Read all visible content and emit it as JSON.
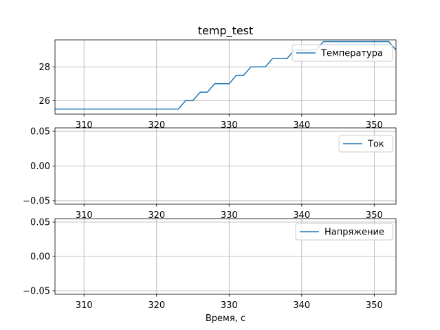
{
  "figure": {
    "title": "temp_test"
  },
  "colors": {
    "line": "#1f77b4",
    "grid": "#b0b0b0",
    "axes": "#000000"
  },
  "chart_data": [
    {
      "type": "line",
      "title": "temp_test",
      "xlabel": "",
      "ylabel": "",
      "xlim": [
        306,
        353
      ],
      "ylim": [
        25.2,
        29.6
      ],
      "xticks": [
        310,
        320,
        330,
        340,
        350
      ],
      "xtick_labels": [
        "310",
        "320",
        "330",
        "340",
        "350"
      ],
      "yticks": [
        26,
        28
      ],
      "ytick_labels": [
        "26",
        "28"
      ],
      "grid": true,
      "legend": "top-right",
      "series": [
        {
          "name": "Температура",
          "x": [
            306,
            323,
            324,
            325,
            326,
            327,
            328,
            329,
            330,
            331,
            332,
            333,
            334,
            335,
            336,
            337,
            338,
            339,
            340,
            341,
            342,
            343,
            344,
            345,
            346,
            347,
            348,
            349,
            350,
            351,
            352,
            353
          ],
          "y": [
            25.5,
            25.5,
            26.0,
            26.0,
            26.5,
            26.5,
            27.0,
            27.0,
            27.0,
            27.5,
            27.5,
            28.0,
            28.0,
            28.0,
            28.5,
            28.5,
            28.5,
            29.0,
            29.0,
            29.0,
            29.0,
            29.5,
            29.5,
            29.5,
            29.5,
            29.5,
            29.5,
            29.5,
            29.5,
            29.5,
            29.5,
            29.0
          ]
        }
      ]
    },
    {
      "type": "line",
      "title": "",
      "xlabel": "",
      "ylabel": "",
      "xlim": [
        306,
        353
      ],
      "ylim": [
        -0.055,
        0.055
      ],
      "xticks": [
        310,
        320,
        330,
        340,
        350
      ],
      "xtick_labels": [
        "310",
        "320",
        "330",
        "340",
        "350"
      ],
      "yticks": [
        -0.05,
        0.0,
        0.05
      ],
      "ytick_labels": [
        "−0.05",
        "0.00",
        "0.05"
      ],
      "grid": true,
      "legend": "top-right",
      "series": [
        {
          "name": "Ток",
          "x": [],
          "y": []
        }
      ]
    },
    {
      "type": "line",
      "title": "",
      "xlabel": "Время, с",
      "ylabel": "",
      "xlim": [
        306,
        353
      ],
      "ylim": [
        -0.055,
        0.055
      ],
      "xticks": [
        310,
        320,
        330,
        340,
        350
      ],
      "xtick_labels": [
        "310",
        "320",
        "330",
        "340",
        "350"
      ],
      "yticks": [
        -0.05,
        0.0,
        0.05
      ],
      "ytick_labels": [
        "−0.05",
        "0.00",
        "0.05"
      ],
      "grid": true,
      "legend": "top-right",
      "series": [
        {
          "name": "Напряжение",
          "x": [],
          "y": []
        }
      ]
    }
  ]
}
